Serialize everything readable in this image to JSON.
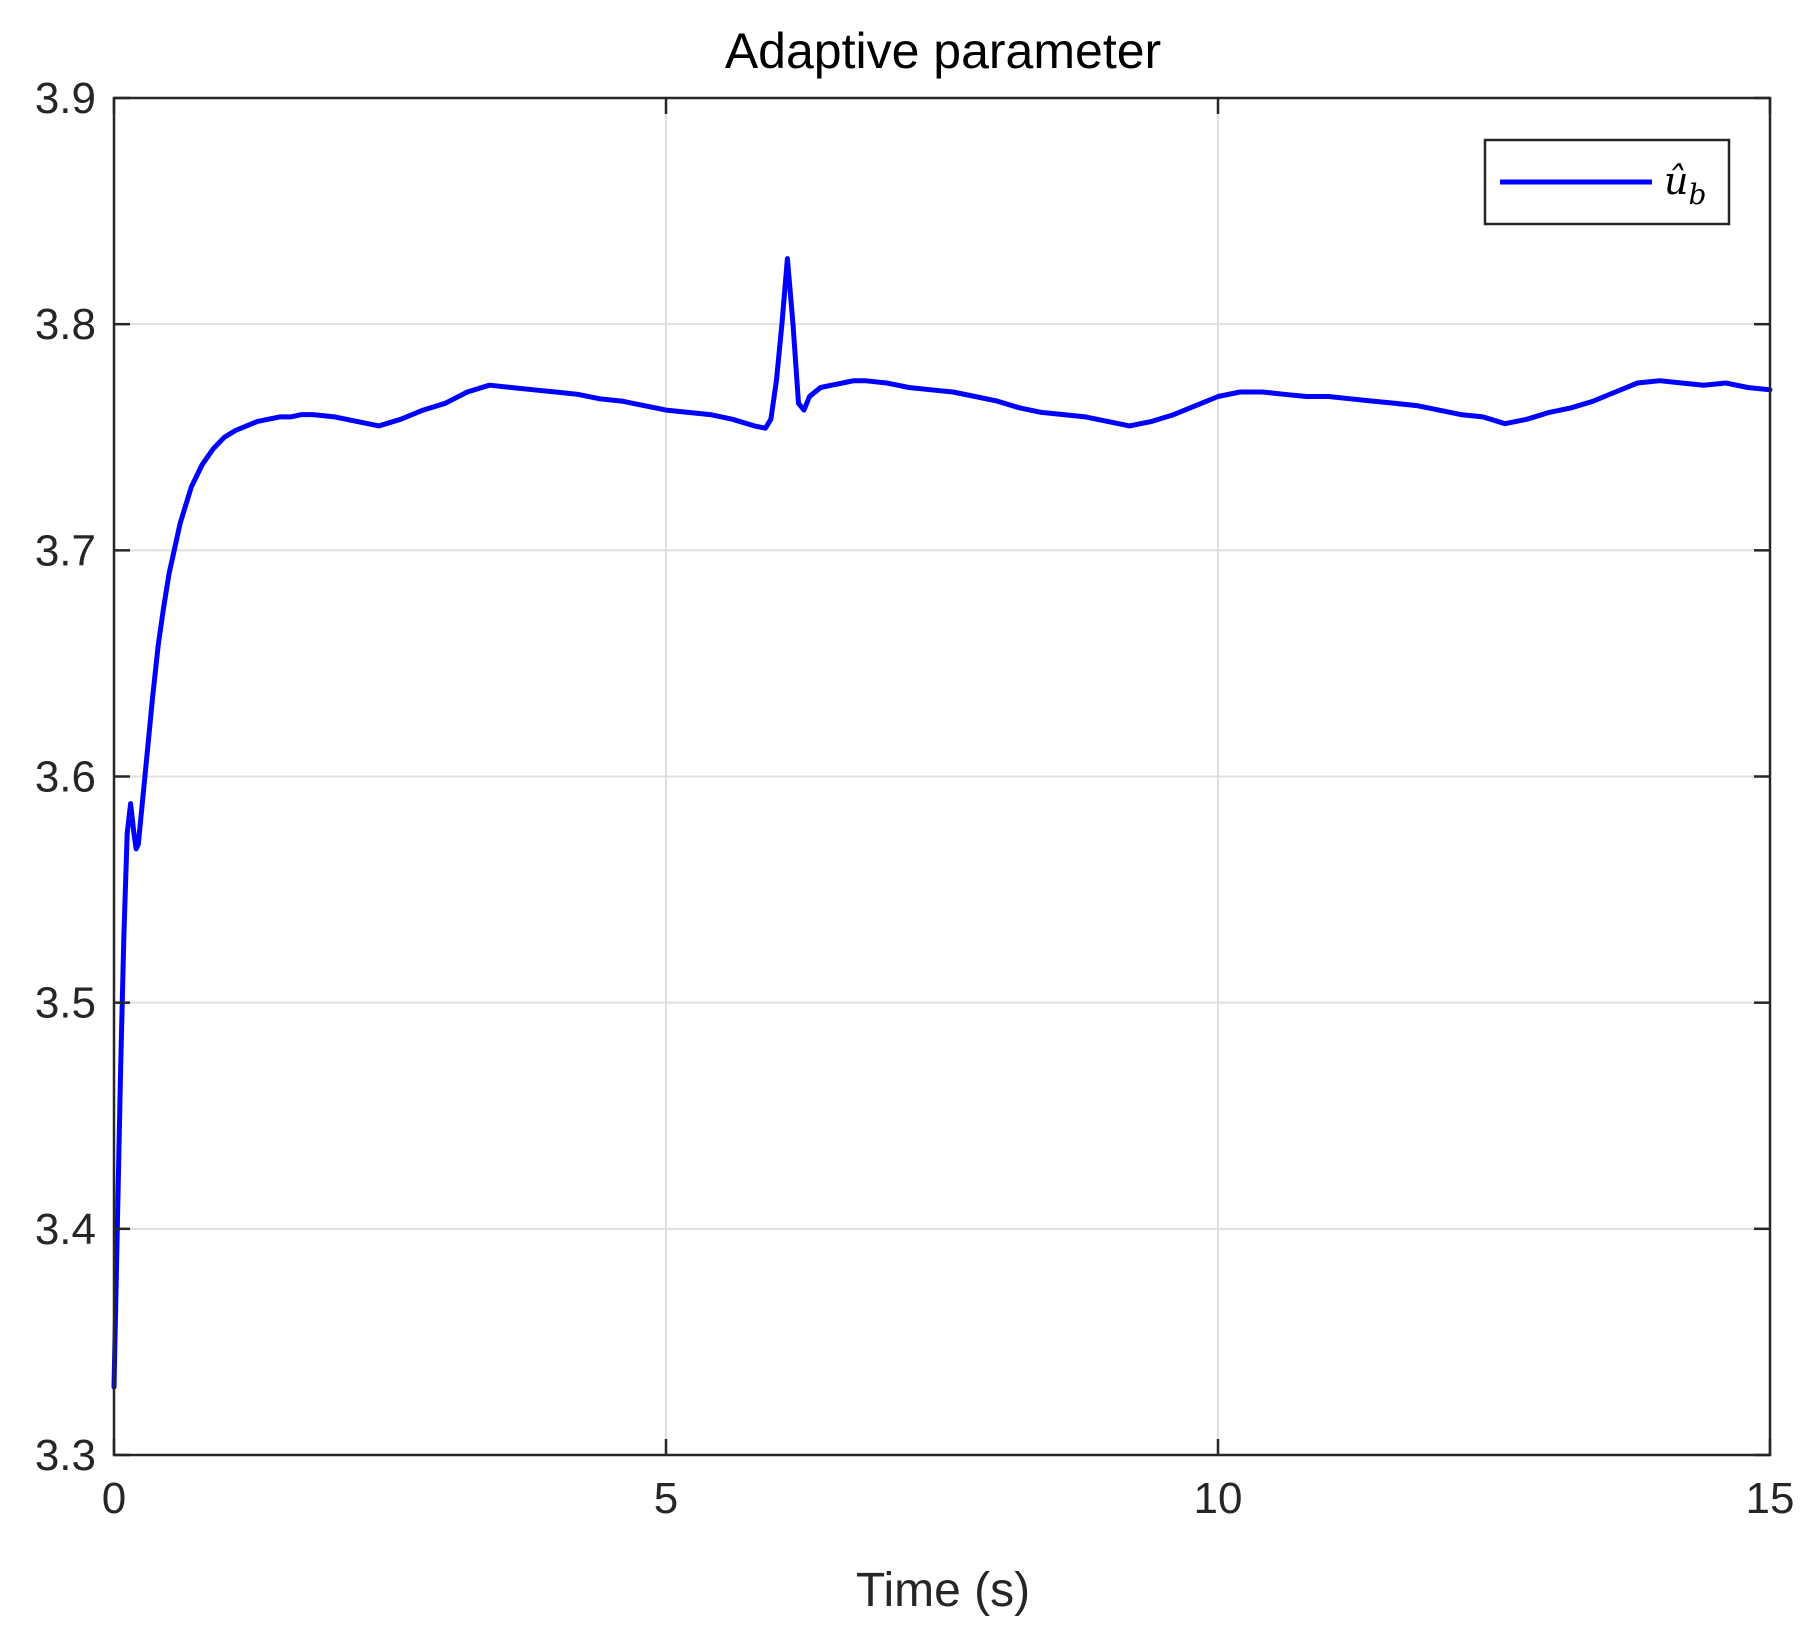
{
  "chart_data": {
    "type": "line",
    "title": "Adaptive parameter",
    "xlabel": "Time (s)",
    "ylabel": "",
    "xlim": [
      0,
      15
    ],
    "ylim": [
      3.3,
      3.9
    ],
    "xticks": [
      0,
      5,
      10,
      15
    ],
    "xtick_labels": [
      "0",
      "5",
      "10",
      "15"
    ],
    "yticks": [
      3.3,
      3.4,
      3.5,
      3.6,
      3.7,
      3.8,
      3.9
    ],
    "ytick_labels": [
      "3.3",
      "3.4",
      "3.5",
      "3.6",
      "3.7",
      "3.8",
      "3.9"
    ],
    "grid": true,
    "legend": {
      "placement": "top-right",
      "entries": [
        "û_b"
      ]
    },
    "series": [
      {
        "name": "û_b",
        "color": "#0000ff",
        "x": [
          0.0,
          0.03,
          0.06,
          0.09,
          0.12,
          0.15,
          0.18,
          0.2,
          0.22,
          0.25,
          0.3,
          0.35,
          0.4,
          0.45,
          0.5,
          0.6,
          0.7,
          0.8,
          0.9,
          1.0,
          1.1,
          1.2,
          1.3,
          1.4,
          1.5,
          1.6,
          1.7,
          1.8,
          2.0,
          2.2,
          2.4,
          2.6,
          2.8,
          3.0,
          3.2,
          3.4,
          3.6,
          3.8,
          4.0,
          4.2,
          4.4,
          4.6,
          4.8,
          5.0,
          5.2,
          5.4,
          5.6,
          5.8,
          5.9,
          5.95,
          6.0,
          6.05,
          6.1,
          6.15,
          6.2,
          6.25,
          6.3,
          6.4,
          6.5,
          6.6,
          6.7,
          6.8,
          7.0,
          7.2,
          7.4,
          7.6,
          7.8,
          8.0,
          8.2,
          8.4,
          8.6,
          8.8,
          9.0,
          9.2,
          9.4,
          9.6,
          9.8,
          10.0,
          10.2,
          10.4,
          10.6,
          10.8,
          11.0,
          11.2,
          11.4,
          11.6,
          11.8,
          12.0,
          12.2,
          12.4,
          12.6,
          12.8,
          13.0,
          13.2,
          13.4,
          13.6,
          13.8,
          14.0,
          14.2,
          14.4,
          14.6,
          14.8,
          15.0
        ],
        "values": [
          3.33,
          3.4,
          3.47,
          3.53,
          3.575,
          3.588,
          3.575,
          3.568,
          3.57,
          3.585,
          3.61,
          3.635,
          3.658,
          3.675,
          3.69,
          3.712,
          3.728,
          3.738,
          3.745,
          3.75,
          3.753,
          3.755,
          3.757,
          3.758,
          3.759,
          3.759,
          3.76,
          3.76,
          3.759,
          3.757,
          3.755,
          3.758,
          3.762,
          3.765,
          3.77,
          3.773,
          3.772,
          3.771,
          3.77,
          3.769,
          3.767,
          3.766,
          3.764,
          3.762,
          3.761,
          3.76,
          3.758,
          3.755,
          3.754,
          3.758,
          3.775,
          3.8,
          3.829,
          3.8,
          3.765,
          3.762,
          3.768,
          3.772,
          3.773,
          3.774,
          3.775,
          3.775,
          3.774,
          3.772,
          3.771,
          3.77,
          3.768,
          3.766,
          3.763,
          3.761,
          3.76,
          3.759,
          3.757,
          3.755,
          3.757,
          3.76,
          3.764,
          3.768,
          3.77,
          3.77,
          3.769,
          3.768,
          3.768,
          3.767,
          3.766,
          3.765,
          3.764,
          3.762,
          3.76,
          3.759,
          3.756,
          3.758,
          3.761,
          3.763,
          3.766,
          3.77,
          3.774,
          3.775,
          3.774,
          3.773,
          3.774,
          3.772,
          3.771
        ]
      }
    ]
  }
}
